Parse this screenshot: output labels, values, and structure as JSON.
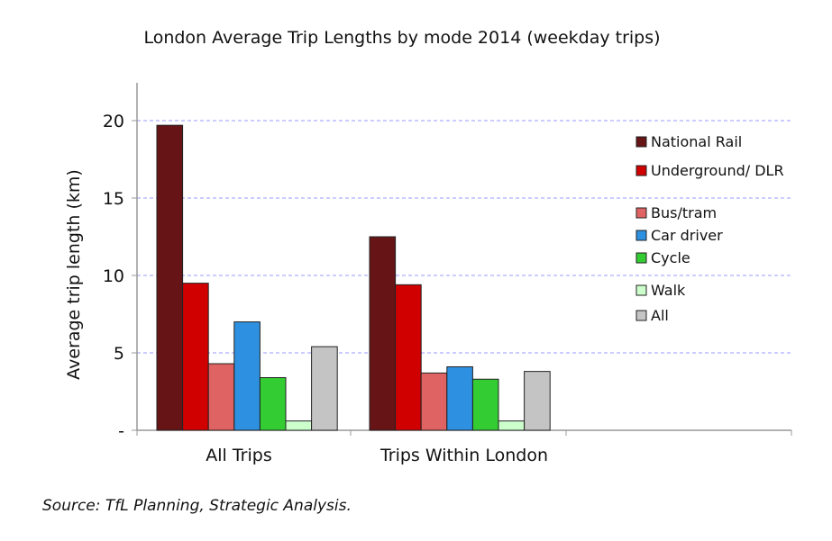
{
  "chart_data": {
    "type": "bar",
    "title": "London Average Trip Lengths by mode 2014 (weekday trips)",
    "xlabel": "",
    "ylabel": "Average trip length (km)",
    "ylim": [
      0,
      22.5
    ],
    "yticks": [
      0,
      5,
      10,
      15,
      20
    ],
    "ytick_labels": [
      "-",
      "5",
      "10",
      "15",
      "20"
    ],
    "grid": true,
    "legend_position": "right",
    "categories": [
      "All Trips",
      "Trips Within London"
    ],
    "series": [
      {
        "name": "National Rail",
        "color": "#661416",
        "values": [
          19.7,
          12.5
        ]
      },
      {
        "name": "Underground/ DLR",
        "color": "#d10000",
        "values": [
          9.5,
          9.4
        ]
      },
      {
        "name": "Bus/tram",
        "color": "#e06363",
        "values": [
          4.3,
          3.7
        ]
      },
      {
        "name": "Car driver",
        "color": "#2e90e0",
        "values": [
          7.0,
          4.1
        ]
      },
      {
        "name": "Cycle",
        "color": "#33cc33",
        "values": [
          3.4,
          3.3
        ]
      },
      {
        "name": "Walk",
        "color": "#ccffcc",
        "values": [
          0.6,
          0.6
        ]
      },
      {
        "name": "All",
        "color": "#c4c4c4",
        "values": [
          5.4,
          3.8
        ]
      }
    ],
    "source": "Source: TfL Planning, Strategic Analysis."
  }
}
